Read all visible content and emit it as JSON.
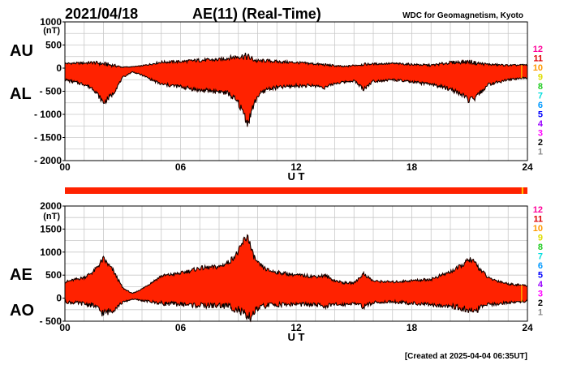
{
  "header": {
    "date": "2021/04/18",
    "title": "AE(11) (Real-Time)",
    "source": "WDC for Geomagnetism, Kyoto"
  },
  "footer": {
    "created": "[Created at 2025-04-04 06:35UT]"
  },
  "colors": {
    "fill": "#ff2200",
    "outline": "#000000",
    "grid": "#c8c8c8",
    "station_count": [
      "#cccccc",
      "#888888",
      "#000000",
      "#ff00ff",
      "#9900ff",
      "#0000ff",
      "#0099ff",
      "#00dddd",
      "#22cc22",
      "#dddd00",
      "#ff9900",
      "#dd0000",
      "#ff0099"
    ]
  },
  "station_count_scale": [
    "12",
    "11",
    "10",
    "9",
    "8",
    "7",
    "6",
    "5",
    "4",
    "3",
    "2",
    "1"
  ],
  "chart_data": [
    {
      "type": "area",
      "unit": "(nT)",
      "ylim": [
        -2000,
        1000
      ],
      "yticks": [
        1000,
        500,
        0,
        -500,
        -1000,
        -1500,
        -2000
      ],
      "ytick_labels": [
        "1000",
        "500",
        "0",
        "- 500",
        "- 1000",
        "- 1500",
        "- 2000"
      ],
      "xlim": [
        0,
        24
      ],
      "xticks": [
        "00",
        "06",
        "12",
        "18",
        "24"
      ],
      "xlabel": "U T",
      "series_labels": [
        "AU",
        "AL"
      ],
      "x": [
        0,
        1,
        1.5,
        2,
        2.5,
        3,
        3.5,
        4,
        5,
        6,
        7,
        8,
        8.5,
        9,
        9.3,
        9.5,
        9.7,
        10,
        10.5,
        11,
        12,
        13,
        13.5,
        14,
        14.5,
        15,
        15.5,
        16,
        17,
        18,
        19,
        20,
        20.5,
        21,
        21.3,
        21.5,
        22,
        23,
        24
      ],
      "upper": [
        100,
        110,
        120,
        90,
        60,
        20,
        30,
        50,
        130,
        140,
        170,
        180,
        220,
        250,
        260,
        240,
        200,
        150,
        160,
        140,
        120,
        90,
        70,
        50,
        30,
        60,
        80,
        90,
        100,
        80,
        60,
        120,
        130,
        140,
        110,
        100,
        80,
        60,
        70
      ],
      "lower": [
        -250,
        -350,
        -450,
        -750,
        -550,
        -200,
        -80,
        -150,
        -350,
        -400,
        -480,
        -500,
        -550,
        -750,
        -1000,
        -1200,
        -900,
        -600,
        -450,
        -420,
        -380,
        -380,
        -420,
        -330,
        -300,
        -270,
        -450,
        -280,
        -250,
        -300,
        -350,
        -450,
        -550,
        -700,
        -650,
        -550,
        -350,
        -250,
        -200
      ]
    },
    {
      "type": "area",
      "unit": "(nT)",
      "ylim": [
        -500,
        2000
      ],
      "yticks": [
        2000,
        1500,
        1000,
        500,
        0,
        -500
      ],
      "ytick_labels": [
        "2000",
        "1500",
        "1000",
        "500",
        "0",
        "- 500"
      ],
      "xlim": [
        0,
        24
      ],
      "xticks": [
        "00",
        "06",
        "12",
        "18",
        "24"
      ],
      "xlabel": "U T",
      "series_labels": [
        "AE",
        "AO"
      ],
      "x": [
        0,
        1,
        1.5,
        2,
        2.5,
        3,
        3.5,
        4,
        5,
        6,
        7,
        8,
        8.5,
        9,
        9.3,
        9.5,
        9.7,
        10,
        10.5,
        11,
        12,
        13,
        13.5,
        14,
        14.5,
        15,
        15.5,
        16,
        17,
        18,
        19,
        20,
        20.5,
        21,
        21.3,
        21.5,
        22,
        23,
        24
      ],
      "upper": [
        350,
        450,
        580,
        850,
        600,
        220,
        100,
        200,
        480,
        540,
        650,
        680,
        780,
        1000,
        1260,
        1350,
        1000,
        750,
        610,
        560,
        500,
        470,
        490,
        380,
        330,
        330,
        530,
        370,
        350,
        380,
        410,
        570,
        680,
        840,
        760,
        650,
        430,
        310,
        270
      ],
      "lower": [
        -80,
        -120,
        -160,
        -330,
        -250,
        -90,
        -20,
        -50,
        -110,
        -130,
        -160,
        -160,
        -170,
        -250,
        -370,
        -480,
        -350,
        -230,
        -150,
        -140,
        -130,
        -145,
        -175,
        -140,
        -135,
        -105,
        -185,
        -95,
        -75,
        -110,
        -145,
        -165,
        -210,
        -280,
        -270,
        -225,
        -135,
        -95,
        -65
      ]
    }
  ]
}
